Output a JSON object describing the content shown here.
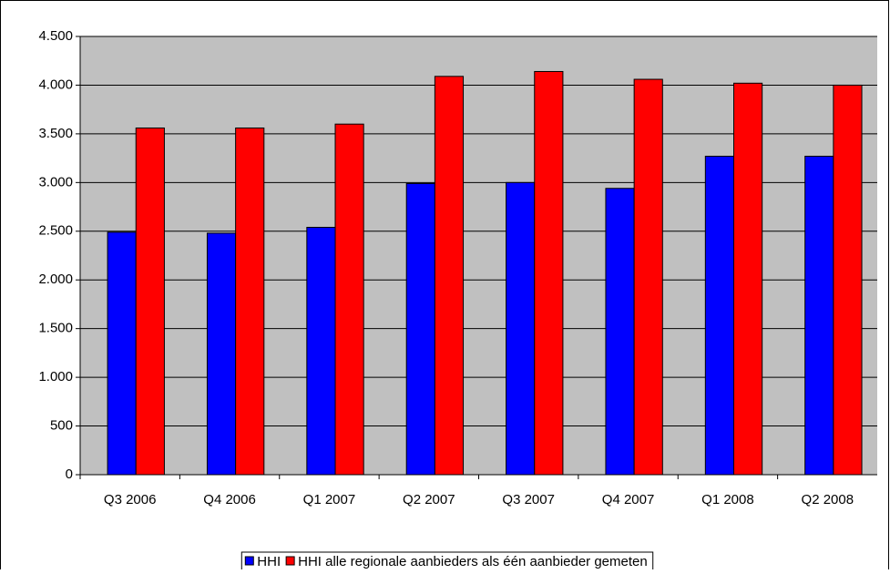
{
  "chart_data": {
    "type": "bar",
    "categories": [
      "Q3 2006",
      "Q4 2006",
      "Q1 2007",
      "Q2 2007",
      "Q3 2007",
      "Q4 2007",
      "Q1 2008",
      "Q2 2008"
    ],
    "series": [
      {
        "name": "HHI",
        "color": "#0000ff",
        "values": [
          2490,
          2480,
          2540,
          2990,
          3000,
          2940,
          3270,
          3270
        ]
      },
      {
        "name": "HHI alle regionale aanbieders als één aanbieder gemeten",
        "color": "#ff0000",
        "values": [
          3560,
          3560,
          3600,
          4090,
          4140,
          4060,
          4020,
          4000
        ]
      }
    ],
    "ylim": [
      0,
      4500
    ],
    "yticks": [
      0,
      500,
      {
        "value": 1000,
        "label": "1.000"
      },
      {
        "value": 1500,
        "label": "1.500"
      },
      {
        "value": 2000,
        "label": "2.000"
      },
      {
        "value": 2500,
        "label": "2.500"
      },
      {
        "value": 3000,
        "label": "3.000"
      },
      {
        "value": 3500,
        "label": "3.500"
      },
      {
        "value": 4000,
        "label": "4.000"
      },
      {
        "value": 4500,
        "label": "4.500"
      }
    ],
    "grid": true,
    "legend": "bottom",
    "plot_background": "#c0c0c0"
  }
}
